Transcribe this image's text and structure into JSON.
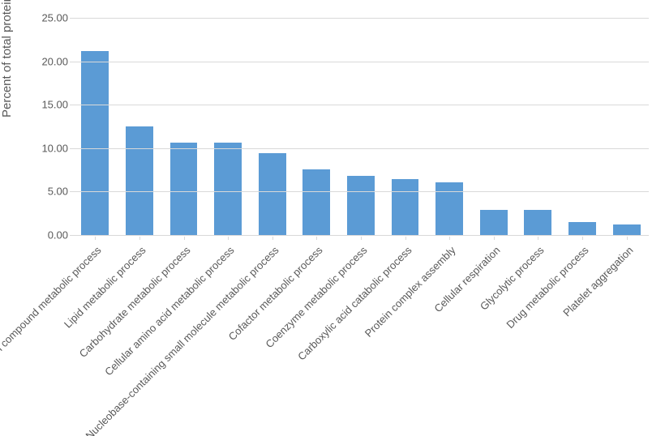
{
  "chart": {
    "type": "bar",
    "y_title": "Percent of total proteins",
    "y_title_fontsize": 15,
    "label_fontsize": 13,
    "label_color": "#595959",
    "background_color": "#ffffff",
    "grid_color": "#d9d9d9",
    "bar_color": "#5b9bd5",
    "bar_width": 0.62,
    "ylim": [
      0,
      25
    ],
    "ytick_step": 5,
    "yticks": [
      {
        "v": 0,
        "label": "0.00"
      },
      {
        "v": 5,
        "label": "5.00"
      },
      {
        "v": 10,
        "label": "10.00"
      },
      {
        "v": 15,
        "label": "15.00"
      },
      {
        "v": 20,
        "label": "20.00"
      },
      {
        "v": 25,
        "label": "25.00"
      }
    ],
    "xlabel_rotation_deg": -45,
    "categories": [
      "Organonitrogen compound metabolic process",
      "Lipid metabolic process",
      "Carbohydrate metabolic process",
      "Cellular amino acid metabolic process",
      "Nucleobase-containing small molecule metabolic process",
      "Cofactor metabolic process",
      "Coenzyme metabolic process",
      "Carboxylic acid catabolic process",
      "Protein complex assembly",
      "Cellular respiration",
      "Glycolytic process",
      "Drug metabolic process",
      "Platelet aggregation"
    ],
    "values": [
      21.2,
      12.5,
      10.6,
      10.6,
      9.4,
      7.6,
      6.8,
      6.4,
      6.1,
      2.9,
      2.9,
      1.5,
      1.2
    ]
  }
}
